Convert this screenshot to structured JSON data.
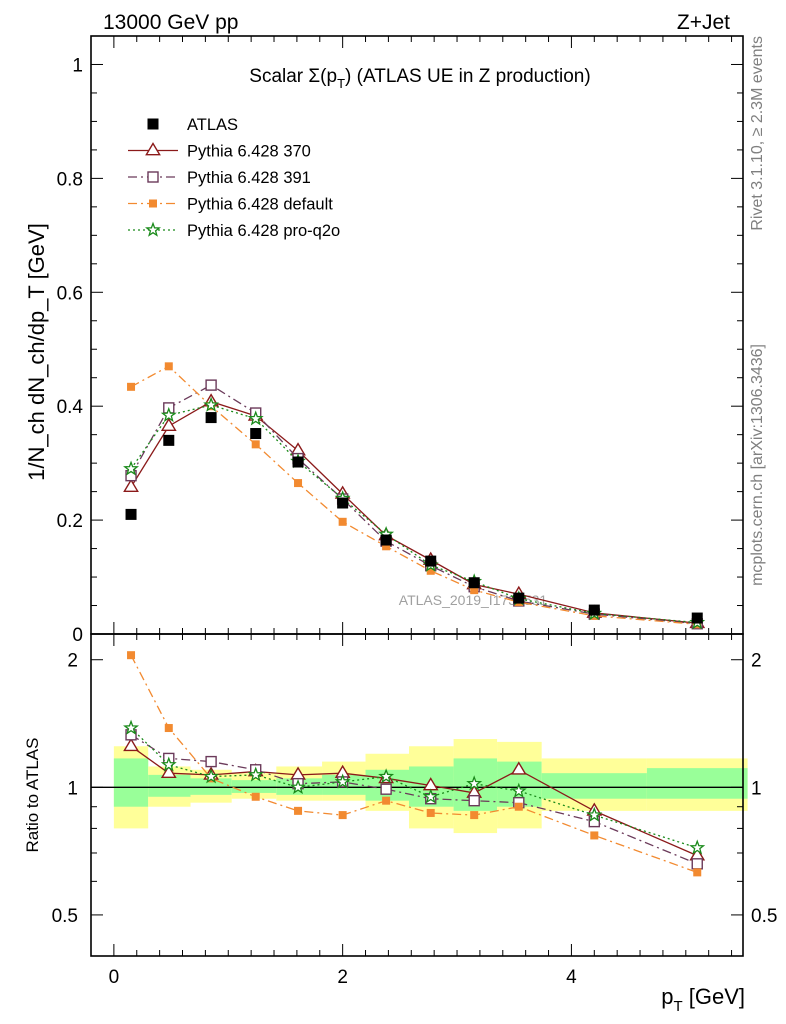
{
  "header": {
    "energy_label": "13000 GeV pp",
    "process_label": "Z+Jet"
  },
  "side_labels": {
    "rivet": "Rivet 3.1.10, ≥ 2.3M events",
    "mcplots": "mcplots.cern.ch [arXiv:1306.3436]"
  },
  "watermark": "ATLAS_2019_I1736531",
  "chart_data": [
    {
      "type": "line",
      "title": "Scalar Σ(p_T) (ATLAS UE in Z production)",
      "title_parts": {
        "a": "Scalar Σ(p",
        "sub": "T",
        "b": ") (ATLAS UE in Z production)"
      },
      "ylabel": "1/N_ch dN_ch/dp_T [GeV]",
      "xlim": [
        -0.2,
        5.5
      ],
      "ylim": [
        0,
        1.05
      ],
      "yticks": [
        0,
        0.2,
        0.4,
        0.6,
        0.8,
        1
      ],
      "ytick_labels": [
        "0",
        "0.2",
        "0.4",
        "0.6",
        "0.8",
        "1"
      ],
      "legend_position": "top-left",
      "x": [
        0.15,
        0.48,
        0.85,
        1.24,
        1.61,
        2.0,
        2.38,
        2.77,
        3.15,
        3.54,
        4.2,
        5.1
      ],
      "series": [
        {
          "name": "ATLAS",
          "color": "#000000",
          "marker": "filled-square",
          "line": "none",
          "values": [
            0.21,
            0.34,
            0.38,
            0.352,
            0.302,
            0.23,
            0.165,
            0.128,
            0.09,
            0.063,
            0.042,
            0.028
          ]
        },
        {
          "name": "Pythia 6.428 370",
          "color": "#8b1a1a",
          "marker": "open-triangle",
          "line": "solid",
          "values": [
            0.258,
            0.365,
            0.408,
            0.383,
            0.322,
            0.246,
            0.173,
            0.13,
            0.087,
            0.07,
            0.037,
            0.019
          ]
        },
        {
          "name": "Pythia 6.428 391",
          "color": "#6b3a5a",
          "marker": "open-square",
          "line": "dashdot",
          "values": [
            0.278,
            0.397,
            0.437,
            0.388,
            0.308,
            0.237,
            0.163,
            0.12,
            0.083,
            0.058,
            0.035,
            0.018
          ]
        },
        {
          "name": "Pythia 6.428 default",
          "color": "#f28a30",
          "marker": "filled-square-small",
          "line": "dashdot",
          "values": [
            0.434,
            0.47,
            0.4,
            0.333,
            0.265,
            0.197,
            0.154,
            0.111,
            0.077,
            0.056,
            0.032,
            0.017
          ]
        },
        {
          "name": "Pythia 6.428 pro-q2o",
          "color": "#1a8a1a",
          "marker": "open-star",
          "line": "dotted",
          "values": [
            0.29,
            0.384,
            0.402,
            0.378,
            0.303,
            0.238,
            0.175,
            0.121,
            0.092,
            0.062,
            0.036,
            0.02
          ]
        }
      ]
    },
    {
      "type": "line",
      "ylabel": "Ratio to ATLAS",
      "xlabel": "p_T [GeV]",
      "xlabel_parts": {
        "a": "p",
        "sub": "T",
        "b": " [GeV]"
      },
      "xlim": [
        -0.2,
        5.5
      ],
      "ylim": [
        0.4,
        2.3
      ],
      "xticks": [
        0,
        2,
        4
      ],
      "xtick_labels": [
        "0",
        "2",
        "4"
      ],
      "yticks": [
        0.5,
        1,
        2
      ],
      "ytick_labels": [
        "0.5",
        "1",
        "2"
      ],
      "log_y": true,
      "x": [
        0.15,
        0.48,
        0.85,
        1.24,
        1.61,
        2.0,
        2.38,
        2.77,
        3.15,
        3.54,
        4.2,
        5.1
      ],
      "bins": [
        [
          0.0,
          0.3
        ],
        [
          0.3,
          0.67
        ],
        [
          0.67,
          1.03
        ],
        [
          1.03,
          1.42
        ],
        [
          1.42,
          1.82
        ],
        [
          1.82,
          2.2
        ],
        [
          2.2,
          2.58
        ],
        [
          2.58,
          2.97
        ],
        [
          2.97,
          3.35
        ],
        [
          3.35,
          3.74
        ],
        [
          3.74,
          4.66
        ],
        [
          4.66,
          5.54
        ]
      ],
      "band_outer": [
        [
          0.8,
          1.25
        ],
        [
          0.9,
          1.12
        ],
        [
          0.92,
          1.1
        ],
        [
          0.94,
          1.08
        ],
        [
          0.93,
          1.12
        ],
        [
          0.93,
          1.15
        ],
        [
          0.88,
          1.2
        ],
        [
          0.8,
          1.25
        ],
        [
          0.78,
          1.3
        ],
        [
          0.8,
          1.28
        ],
        [
          0.88,
          1.17
        ],
        [
          0.88,
          1.17
        ]
      ],
      "band_inner": [
        [
          0.9,
          1.17
        ],
        [
          0.95,
          1.07
        ],
        [
          0.96,
          1.05
        ],
        [
          0.97,
          1.04
        ],
        [
          0.96,
          1.05
        ],
        [
          0.96,
          1.07
        ],
        [
          0.93,
          1.1
        ],
        [
          0.9,
          1.12
        ],
        [
          0.88,
          1.17
        ],
        [
          0.9,
          1.15
        ],
        [
          0.94,
          1.08
        ],
        [
          0.94,
          1.11
        ]
      ],
      "series": [
        {
          "name": "Pythia 6.428 370",
          "color": "#8b1a1a",
          "marker": "open-triangle",
          "line": "solid",
          "values": [
            1.25,
            1.08,
            1.07,
            1.09,
            1.07,
            1.08,
            1.05,
            1.01,
            0.97,
            1.1,
            0.88,
            0.69
          ]
        },
        {
          "name": "Pythia 6.428 391",
          "color": "#6b3a5a",
          "marker": "open-square",
          "line": "dashdot",
          "values": [
            1.33,
            1.17,
            1.15,
            1.1,
            1.02,
            1.03,
            0.99,
            0.94,
            0.93,
            0.92,
            0.83,
            0.66
          ]
        },
        {
          "name": "Pythia 6.428 default",
          "color": "#f28a30",
          "marker": "filled-square-small",
          "line": "dashdot",
          "values": [
            2.05,
            1.38,
            1.05,
            0.95,
            0.88,
            0.86,
            0.93,
            0.87,
            0.86,
            0.9,
            0.77,
            0.63
          ]
        },
        {
          "name": "Pythia 6.428 pro-q2o",
          "color": "#1a8a1a",
          "marker": "open-star",
          "line": "dotted",
          "values": [
            1.38,
            1.13,
            1.06,
            1.07,
            1.0,
            1.03,
            1.06,
            0.95,
            1.02,
            0.98,
            0.86,
            0.72
          ]
        }
      ]
    }
  ],
  "colors": {
    "band_outer": "#ffff99",
    "band_inner": "#99ff99",
    "watermark": "#a0a0a0",
    "side_text": "#7f7f7f"
  }
}
